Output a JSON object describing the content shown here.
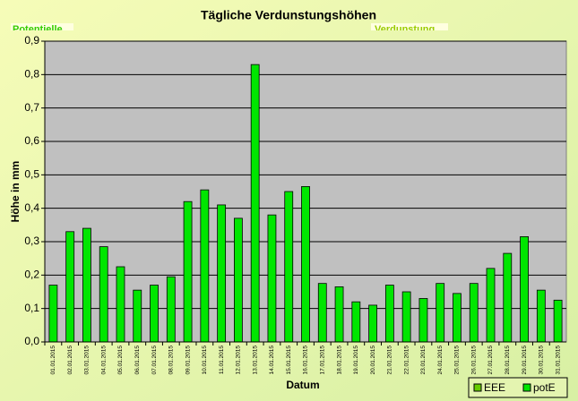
{
  "chart_data": {
    "type": "bar",
    "title": "Tägliche Verdunstungshöhen",
    "annotations": [
      "Potentielle",
      "Verdunstung"
    ],
    "x_label": "Datum",
    "y_label": "Höhe in mm",
    "categories": [
      "01.01.2015",
      "02.01.2015",
      "03.01.2015",
      "04.01.2015",
      "05.01.2015",
      "06.01.2015",
      "07.01.2015",
      "08.01.2015",
      "09.01.2015",
      "10.01.2015",
      "11.01.2015",
      "12.01.2015",
      "13.01.2015",
      "14.01.2015",
      "15.01.2015",
      "16.01.2015",
      "17.01.2015",
      "18.01.2015",
      "19.01.2015",
      "20.01.2015",
      "21.01.2015",
      "22.01.2015",
      "23.01.2015",
      "24.01.2015",
      "25.01.2015",
      "26.01.2015",
      "27.01.2015",
      "28.01.2015",
      "29.01.2015",
      "30.01.2015",
      "31.01.2015"
    ],
    "series": [
      {
        "name": "EEE",
        "color": "#66cc00",
        "values": [
          null,
          null,
          null,
          null,
          null,
          null,
          null,
          null,
          null,
          null,
          null,
          null,
          null,
          null,
          null,
          null,
          null,
          null,
          null,
          null,
          null,
          null,
          null,
          null,
          null,
          null,
          null,
          null,
          null,
          null,
          null
        ]
      },
      {
        "name": "potE",
        "color": "#00e600",
        "values": [
          0.17,
          0.33,
          0.34,
          0.285,
          0.225,
          0.155,
          0.17,
          0.195,
          0.42,
          0.455,
          0.41,
          0.37,
          0.83,
          0.38,
          0.45,
          0.465,
          0.175,
          0.165,
          0.12,
          0.11,
          0.17,
          0.15,
          0.13,
          0.175,
          0.145,
          0.175,
          0.22,
          0.265,
          0.315,
          0.155,
          0.125
        ]
      }
    ],
    "ylim": [
      0,
      0.9
    ],
    "yticks": [
      {
        "value": 0,
        "label": "0,0"
      },
      {
        "value": 0.1,
        "label": "0,1"
      },
      {
        "value": 0.2,
        "label": "0,2"
      },
      {
        "value": 0.3,
        "label": "0,3"
      },
      {
        "value": 0.4,
        "label": "0,4"
      },
      {
        "value": 0.5,
        "label": "0,5"
      },
      {
        "value": 0.6,
        "label": "0,6"
      },
      {
        "value": 0.7,
        "label": "0,7"
      },
      {
        "value": 0.8,
        "label": "0,8"
      },
      {
        "value": 0.9,
        "label": "0,9"
      }
    ],
    "grid": true,
    "legend": "bottom-right"
  }
}
